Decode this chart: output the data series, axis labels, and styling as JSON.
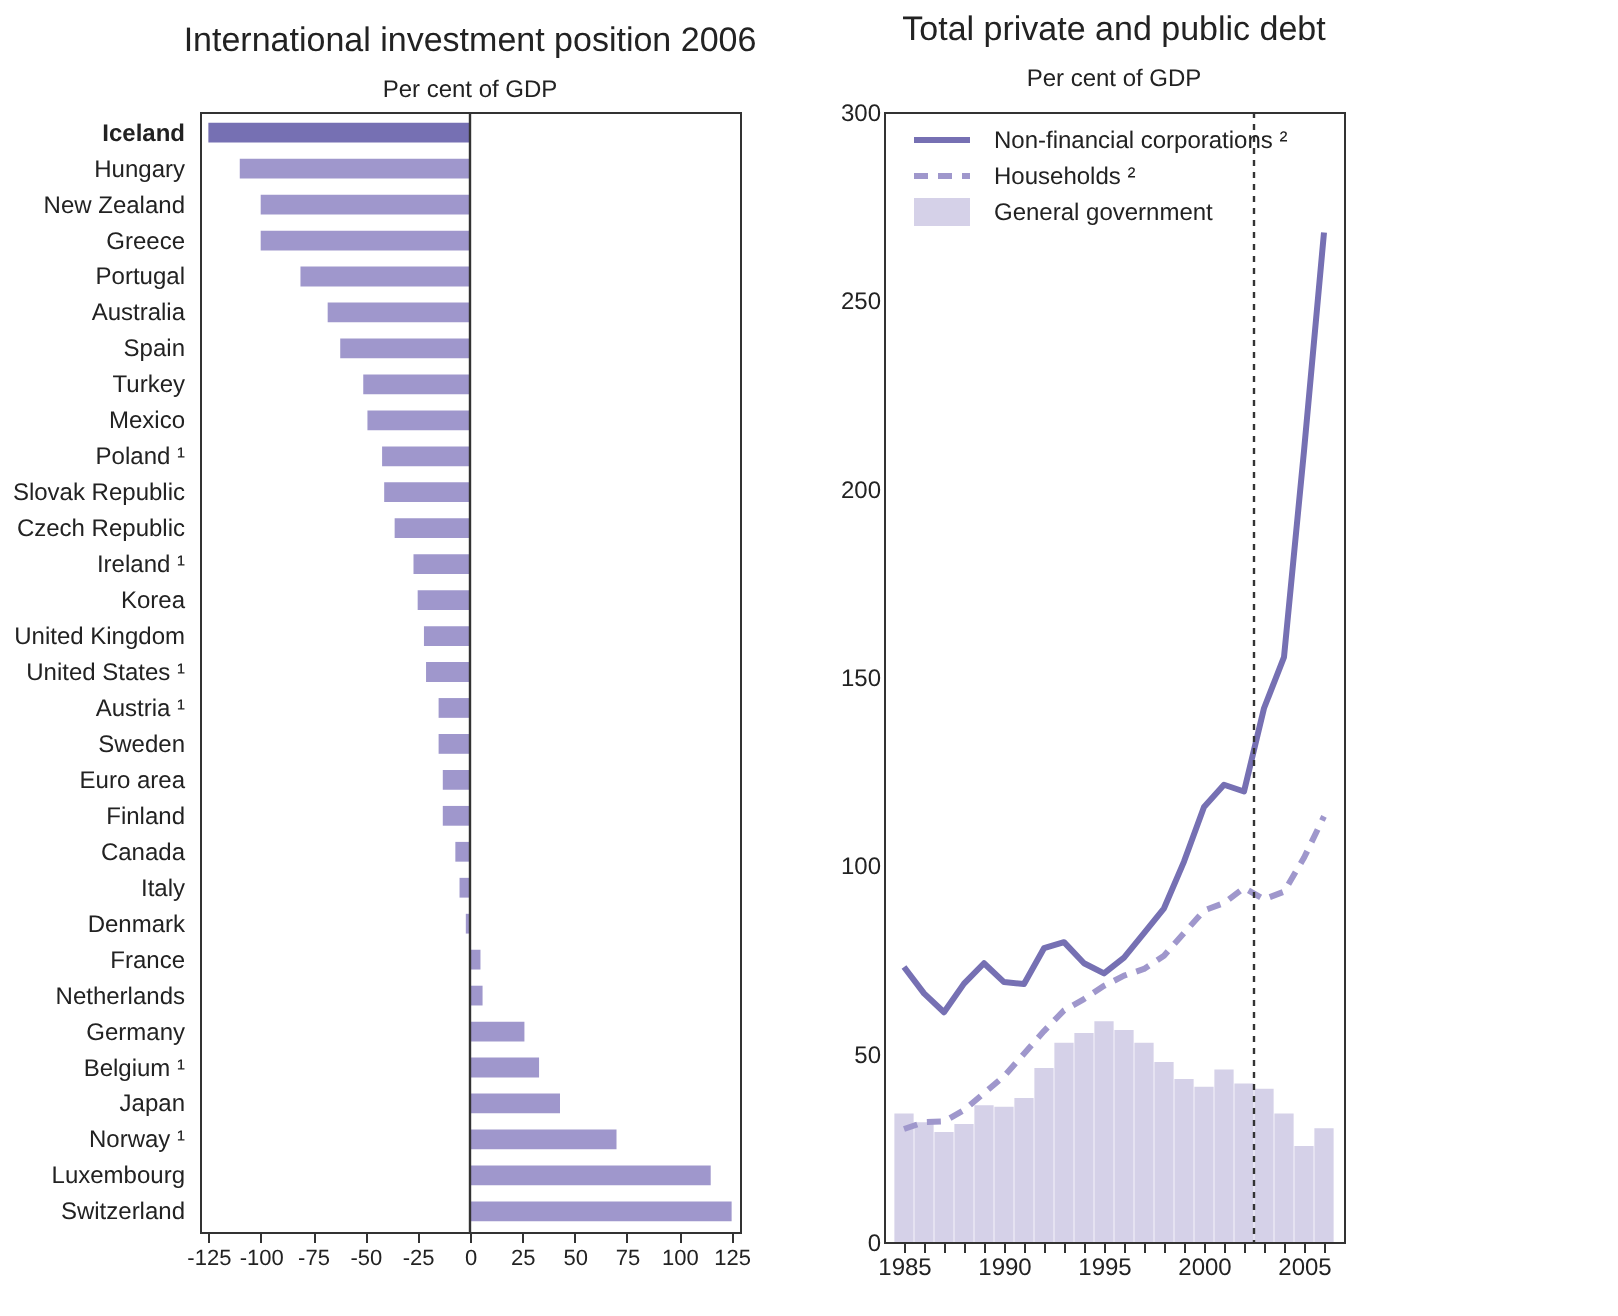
{
  "chart_data": [
    {
      "type": "bar",
      "orientation": "horizontal",
      "title": "International investment position 2006",
      "subtitle": "Per cent of GDP",
      "categories": [
        "Iceland",
        "Hungary",
        "New Zealand",
        "Greece",
        "Portugal",
        "Australia",
        "Spain",
        "Turkey",
        "Mexico",
        "Poland ¹",
        "Slovak Republic",
        "Czech Republic",
        "Ireland ¹",
        "Korea",
        "United Kingdom",
        "United States ¹",
        "Austria ¹",
        "Sweden",
        "Euro area",
        "Finland",
        "Canada",
        "Italy",
        "Denmark",
        "France",
        "Netherlands",
        "Germany",
        "Belgium ¹",
        "Japan",
        "Norway ¹",
        "Luxembourg",
        "Switzerland"
      ],
      "values": [
        -125,
        -110,
        -100,
        -100,
        -81,
        -68,
        -62,
        -51,
        -49,
        -42,
        -41,
        -36,
        -27,
        -25,
        -22,
        -21,
        -15,
        -15,
        -13,
        -13,
        -7,
        -5,
        -2,
        5,
        6,
        26,
        33,
        43,
        70,
        115,
        125
      ],
      "colors": [
        "#7670b3",
        "#9f97cc",
        "#9f97cc",
        "#9f97cc",
        "#9f97cc",
        "#9f97cc",
        "#9f97cc",
        "#9f97cc",
        "#9f97cc",
        "#9f97cc",
        "#9f97cc",
        "#9f97cc",
        "#9f97cc",
        "#9f97cc",
        "#9f97cc",
        "#9f97cc",
        "#9f97cc",
        "#9f97cc",
        "#9f97cc",
        "#9f97cc",
        "#9f97cc",
        "#9f97cc",
        "#9f97cc",
        "#9f97cc",
        "#9f97cc",
        "#9f97cc",
        "#9f97cc",
        "#9f97cc",
        "#9f97cc",
        "#9f97cc",
        "#9f97cc"
      ],
      "xlim": [
        -129,
        129
      ],
      "xticks": [
        -125,
        -100,
        -75,
        -50,
        -25,
        0,
        25,
        50,
        75,
        100,
        125
      ],
      "ref_lines": [
        {
          "axis": "x",
          "value": 0,
          "color": "#333333",
          "line_style": "solid"
        }
      ],
      "grid": false,
      "legend": false
    },
    {
      "type": "line",
      "title": "Total private and public debt",
      "subtitle": "Per cent of GDP",
      "x": [
        1985,
        1986,
        1987,
        1988,
        1989,
        1990,
        1991,
        1992,
        1993,
        1994,
        1995,
        1996,
        1997,
        1998,
        1999,
        2000,
        2001,
        2002,
        2003,
        2004,
        2005,
        2006
      ],
      "series": [
        {
          "name": "Non-financial corporations ²",
          "type": "line",
          "line_style": "solid",
          "color": "#7670b3",
          "values": [
            73,
            66,
            61,
            68.6,
            74,
            69,
            68.5,
            78,
            79.6,
            74,
            71.3,
            75.5,
            82,
            88.6,
            101,
            115.5,
            121.4,
            119.6,
            141.7,
            155.3,
            210,
            268
          ]
        },
        {
          "name": "Households ²",
          "type": "line",
          "line_style": "dashed",
          "color": "#9f97cc",
          "values": [
            30,
            31.8,
            32,
            35,
            39.5,
            44,
            50,
            56,
            61.5,
            64.5,
            68,
            70.7,
            72.5,
            76,
            82,
            88,
            90,
            94,
            91,
            93,
            102,
            113
          ]
        },
        {
          "name": "General government",
          "type": "bar",
          "color": "#d5d1e8",
          "values": [
            34.1,
            31.8,
            29.2,
            31.3,
            36.3,
            35.9,
            38.2,
            46.2,
            52.9,
            55.5,
            58.6,
            56.3,
            52.9,
            47.8,
            43.3,
            41.2,
            45.8,
            42.1,
            40.7,
            34.1,
            25.5,
            30.2
          ]
        }
      ],
      "xlim": [
        1984.5,
        2006.5
      ],
      "xticks": [
        1985,
        {
          "value": 1986,
          "label": null
        },
        {
          "value": 1987,
          "label": null
        },
        {
          "value": 1988,
          "label": null
        },
        {
          "value": 1989,
          "label": null
        },
        1990,
        {
          "value": 1991,
          "label": null
        },
        {
          "value": 1992,
          "label": null
        },
        {
          "value": 1993,
          "label": null
        },
        {
          "value": 1994,
          "label": null
        },
        1995,
        {
          "value": 1996,
          "label": null
        },
        {
          "value": 1997,
          "label": null
        },
        {
          "value": 1998,
          "label": null
        },
        {
          "value": 1999,
          "label": null
        },
        2000,
        {
          "value": 2001,
          "label": null
        },
        {
          "value": 2002,
          "label": null
        },
        {
          "value": 2003,
          "label": null
        },
        {
          "value": 2004,
          "label": null
        },
        2005,
        {
          "value": 2006,
          "label": null
        }
      ],
      "ylim": [
        0,
        300
      ],
      "yticks": [
        0,
        50,
        100,
        150,
        200,
        250,
        300
      ],
      "ref_lines": [
        {
          "axis": "x",
          "value": 2002.5,
          "color": "#333333",
          "line_style": "dotted"
        }
      ],
      "grid": false,
      "legend": "top left"
    }
  ]
}
